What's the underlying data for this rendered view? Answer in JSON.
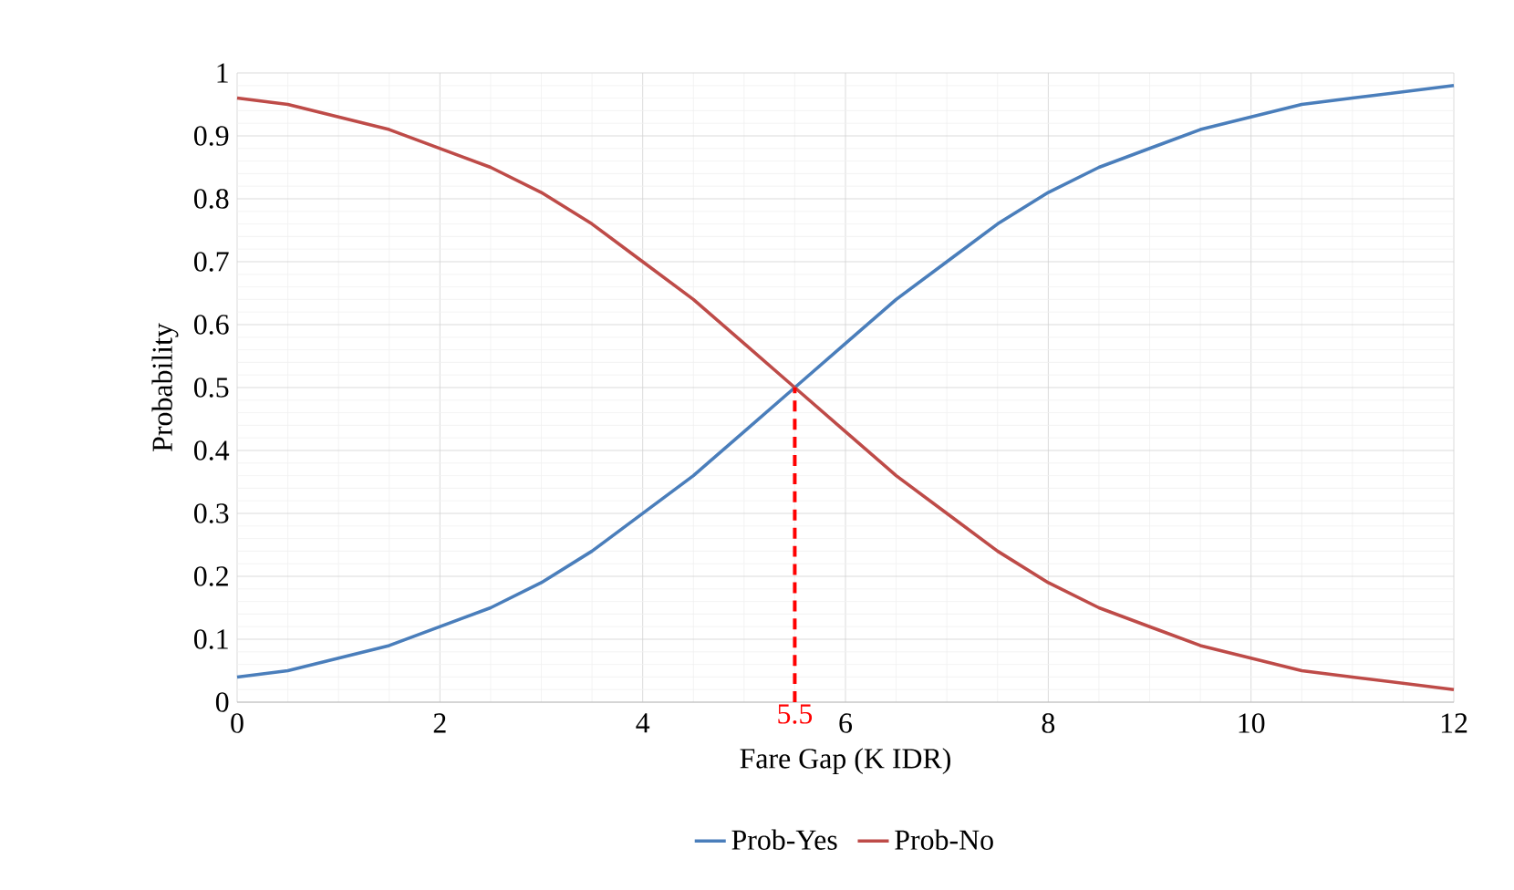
{
  "chart_data": {
    "type": "line",
    "xlabel": "Fare Gap (K IDR)",
    "ylabel": "Probability",
    "x": [
      0,
      0.5,
      1,
      1.5,
      2,
      2.5,
      3,
      3.5,
      4,
      4.5,
      5,
      5.5,
      6,
      6.5,
      7,
      7.5,
      8,
      8.5,
      9,
      9.5,
      10,
      10.5,
      11,
      11.5,
      12
    ],
    "series": [
      {
        "name": "Prob-Yes",
        "color": "#4a7ebb",
        "values": [
          0.04,
          0.05,
          0.07,
          0.09,
          0.12,
          0.15,
          0.19,
          0.24,
          0.3,
          0.36,
          0.43,
          0.5,
          0.57,
          0.64,
          0.7,
          0.76,
          0.81,
          0.85,
          0.88,
          0.91,
          0.93,
          0.95,
          0.96,
          0.97,
          0.98
        ]
      },
      {
        "name": "Prob-No",
        "color": "#be4b48",
        "values": [
          0.96,
          0.95,
          0.93,
          0.91,
          0.88,
          0.85,
          0.81,
          0.76,
          0.7,
          0.64,
          0.57,
          0.5,
          0.43,
          0.36,
          0.3,
          0.24,
          0.19,
          0.15,
          0.12,
          0.09,
          0.07,
          0.05,
          0.04,
          0.03,
          0.02
        ]
      }
    ],
    "xlim": [
      0,
      12
    ],
    "xticks": [
      0,
      2,
      4,
      6,
      8,
      10,
      12
    ],
    "ylim": [
      0,
      1
    ],
    "yticks": [
      0,
      0.1,
      0.2,
      0.3,
      0.4,
      0.5,
      0.6,
      0.7,
      0.8,
      0.9,
      1
    ],
    "ref_lines": [
      {
        "axis": "x",
        "value": 5.5,
        "label": "5.5",
        "color": "#ff0000",
        "line_style": "dashed"
      }
    ],
    "grid": true,
    "legend": "bottom",
    "marker": "none",
    "line_style": "solid"
  }
}
